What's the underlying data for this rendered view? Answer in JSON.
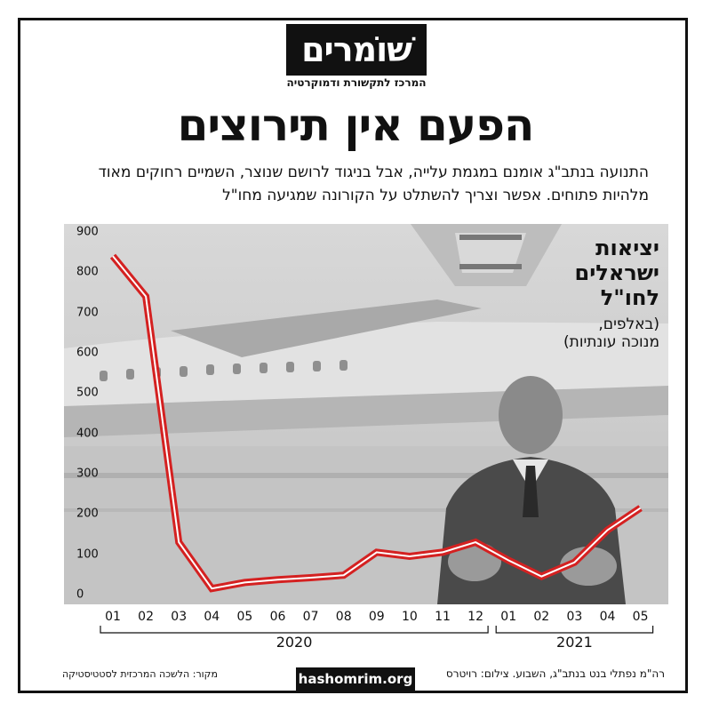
{
  "logo": {
    "name": "שׁוֹמרים",
    "tagline": "המרכז לתקשורת ודמוקרטיה"
  },
  "title": "הפעם אין תירוצים",
  "subtitle": "התנועה בנתב\"ג אומנם במגמת עלייה, אבל בניגוד לרושם שנוצר, השמיים רחוקים מאוד מלהיות פתוחים. אפשר וצריך להשתלט על הקורונה שמגיעה מחו\"ל",
  "legend": {
    "title": "יציאות\nישראלים\nלחו\"ל",
    "subtitle": "(באלפים,\nמנוכה עונתיות)"
  },
  "colors": {
    "line": "#d42121",
    "frame": "#111111",
    "photo_bg": "#cfcfcf"
  },
  "chart_data": {
    "type": "line",
    "title": "יציאות ישראלים לחו\"ל",
    "ylabel": "(באלפים, מנוכה עונתיות)",
    "ylim": [
      0,
      900
    ],
    "yticks": [
      0,
      100,
      200,
      300,
      400,
      500,
      600,
      700,
      800,
      900
    ],
    "grid": false,
    "categories": [
      "01",
      "02",
      "03",
      "04",
      "05",
      "06",
      "07",
      "08",
      "09",
      "10",
      "11",
      "12",
      "01",
      "02",
      "03",
      "04",
      "05"
    ],
    "year_groups": [
      {
        "label": "2020",
        "from": 0,
        "to": 11
      },
      {
        "label": "2021",
        "from": 12,
        "to": 16
      }
    ],
    "series": [
      {
        "values": [
          840,
          740,
          130,
          15,
          30,
          37,
          42,
          48,
          105,
          95,
          105,
          130,
          85,
          45,
          80,
          160,
          215
        ]
      }
    ]
  },
  "footer": {
    "source": "מקור: הלשכה המרכזית לסטטיסטיקה",
    "site": "hashomrim.org",
    "credit": "רה\"מ נפתלי בנט בנתב\"ג, השבוע. צילום: רויטרס"
  }
}
